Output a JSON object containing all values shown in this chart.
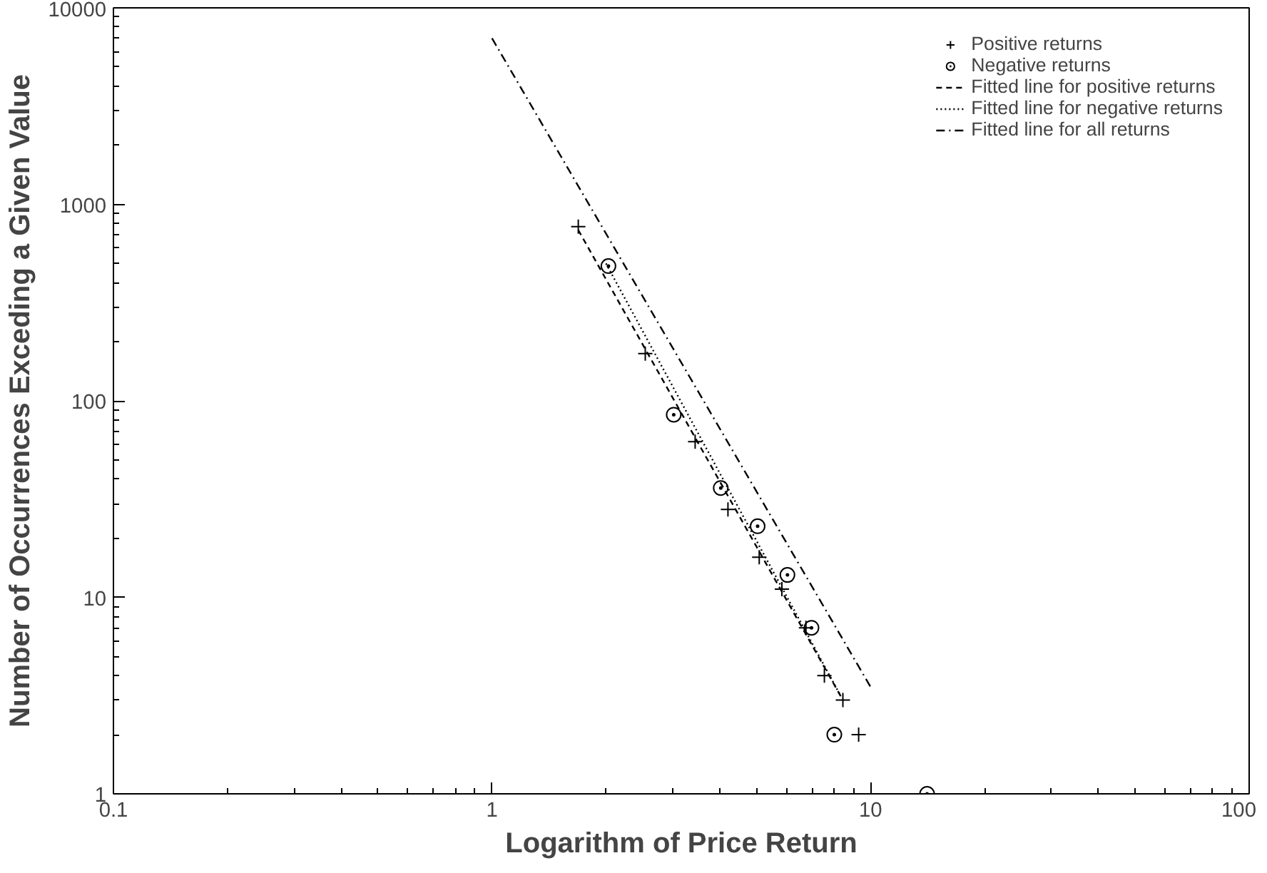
{
  "chart_data": {
    "type": "scatter",
    "xlabel": "Logarithm of Price Return",
    "ylabel": "Number of Occurrences Exceding a Given Value",
    "log": "xy",
    "xlim": [
      0.1,
      100
    ],
    "ylim": [
      1,
      10000
    ],
    "xticks": [
      0.1,
      1,
      10,
      100
    ],
    "yticks": [
      1,
      10,
      100,
      1000,
      10000
    ],
    "grid": false,
    "legend": "top right",
    "series": [
      {
        "name": "Positive returns",
        "marker": "cross",
        "color": "#000000",
        "x": [
          1.69,
          2.54,
          3.44,
          4.2,
          5.08,
          5.83,
          6.75,
          7.55,
          8.45,
          9.3
        ],
        "values": [
          770,
          174,
          62,
          28,
          16,
          11,
          7,
          4,
          3,
          2
        ]
      },
      {
        "name": "Negative returns",
        "marker": "circle",
        "color": "#000000",
        "x": [
          2.03,
          3.02,
          4.02,
          5.03,
          6.03,
          6.98,
          8.02,
          14.1
        ],
        "values": [
          485,
          85,
          36,
          23,
          13,
          7,
          2,
          1
        ]
      },
      {
        "name": "Fitted line for positive returns",
        "type": "line",
        "line_style": "dashed",
        "color": "#000000",
        "x": [
          1.69,
          8.45
        ],
        "values": [
          740,
          3.0
        ]
      },
      {
        "name": "Fitted line for negative returns",
        "type": "line",
        "line_style": "dotted",
        "color": "#000000",
        "x": [
          2.0,
          8.3
        ],
        "values": [
          500,
          3.2
        ]
      },
      {
        "name": "Fitted line for all returns",
        "type": "line",
        "line_style": "dashdot",
        "color": "#000000",
        "x": [
          1,
          10
        ],
        "values": [
          7000,
          3.5
        ]
      }
    ]
  }
}
